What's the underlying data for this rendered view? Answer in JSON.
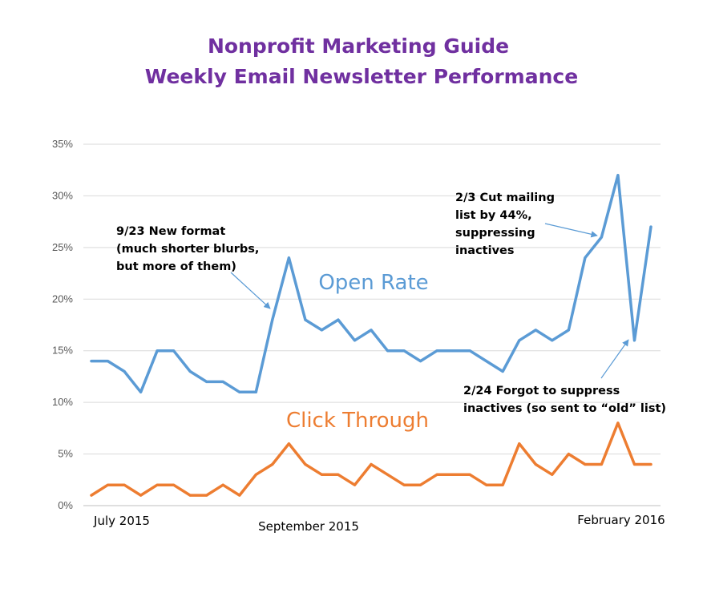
{
  "chart_data": {
    "type": "line",
    "title": "Nonprofit Marketing Guide",
    "subtitle": "Weekly Email Newsletter Performance",
    "title_color": "#7030A0",
    "xlabel": "",
    "ylabel": "",
    "ylim": [
      0,
      35
    ],
    "y_ticks": [
      "0%",
      "5%",
      "10%",
      "15%",
      "20%",
      "25%",
      "30%",
      "35%"
    ],
    "grid": true,
    "legend": "none",
    "x_labels": [
      "July 2015",
      "September 2015",
      "February 2016"
    ],
    "series": [
      {
        "name": "Open Rate",
        "color": "#5B9BD5",
        "values": [
          14,
          14,
          13,
          11,
          15,
          15,
          13,
          12,
          12,
          11,
          11,
          18,
          24,
          18,
          17,
          18,
          16,
          17,
          15,
          15,
          14,
          15,
          15,
          15,
          14,
          13,
          16,
          17,
          16,
          17,
          24,
          26,
          32,
          16,
          27
        ]
      },
      {
        "name": "Click Through",
        "color": "#ED7D31",
        "values": [
          1,
          2,
          2,
          1,
          2,
          2,
          1,
          1,
          2,
          1,
          3,
          4,
          6,
          4,
          3,
          3,
          2,
          4,
          3,
          2,
          2,
          3,
          3,
          3,
          2,
          2,
          6,
          4,
          3,
          5,
          4,
          4,
          8,
          4,
          4
        ]
      }
    ],
    "annotations": [
      {
        "lines": [
          "9/23 New format",
          "(much shorter blurbs,",
          "but more of them)"
        ]
      },
      {
        "lines": [
          "2/3 Cut mailing",
          "list by 44%,",
          "suppressing",
          "inactives"
        ]
      },
      {
        "lines": [
          "2/24 Forgot to suppress",
          "inactives (so sent to “old” list)"
        ]
      }
    ]
  }
}
